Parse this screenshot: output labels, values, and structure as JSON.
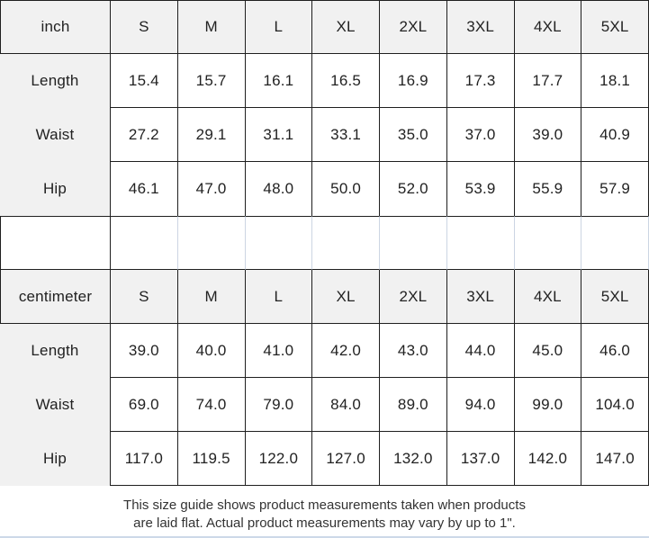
{
  "colors": {
    "header_bg": "#f1f1f1",
    "grid_line": "#1f1f1f",
    "light_line": "#ccd5e3",
    "text": "#222222"
  },
  "inch_table": {
    "unit_label": "inch",
    "sizes": [
      "S",
      "M",
      "L",
      "XL",
      "2XL",
      "3XL",
      "4XL",
      "5XL"
    ],
    "rows": [
      {
        "label": "Length",
        "values": [
          "15.4",
          "15.7",
          "16.1",
          "16.5",
          "16.9",
          "17.3",
          "17.7",
          "18.1"
        ]
      },
      {
        "label": "Waist",
        "values": [
          "27.2",
          "29.1",
          "31.1",
          "33.1",
          "35.0",
          "37.0",
          "39.0",
          "40.9"
        ]
      },
      {
        "label": "Hip",
        "values": [
          "46.1",
          "47.0",
          "48.0",
          "50.0",
          "52.0",
          "53.9",
          "55.9",
          "57.9"
        ]
      }
    ]
  },
  "cm_table": {
    "unit_label": "centimeter",
    "sizes": [
      "S",
      "M",
      "L",
      "XL",
      "2XL",
      "3XL",
      "4XL",
      "5XL"
    ],
    "rows": [
      {
        "label": "Length",
        "values": [
          "39.0",
          "40.0",
          "41.0",
          "42.0",
          "43.0",
          "44.0",
          "45.0",
          "46.0"
        ]
      },
      {
        "label": "Waist",
        "values": [
          "69.0",
          "74.0",
          "79.0",
          "84.0",
          "89.0",
          "94.0",
          "99.0",
          "104.0"
        ]
      },
      {
        "label": "Hip",
        "values": [
          "117.0",
          "119.5",
          "122.0",
          "127.0",
          "132.0",
          "137.0",
          "142.0",
          "147.0"
        ]
      }
    ]
  },
  "footer": {
    "line1": "This size guide shows product measurements taken when products",
    "line2": "are laid flat. Actual product measurements may vary by up to 1\"."
  }
}
